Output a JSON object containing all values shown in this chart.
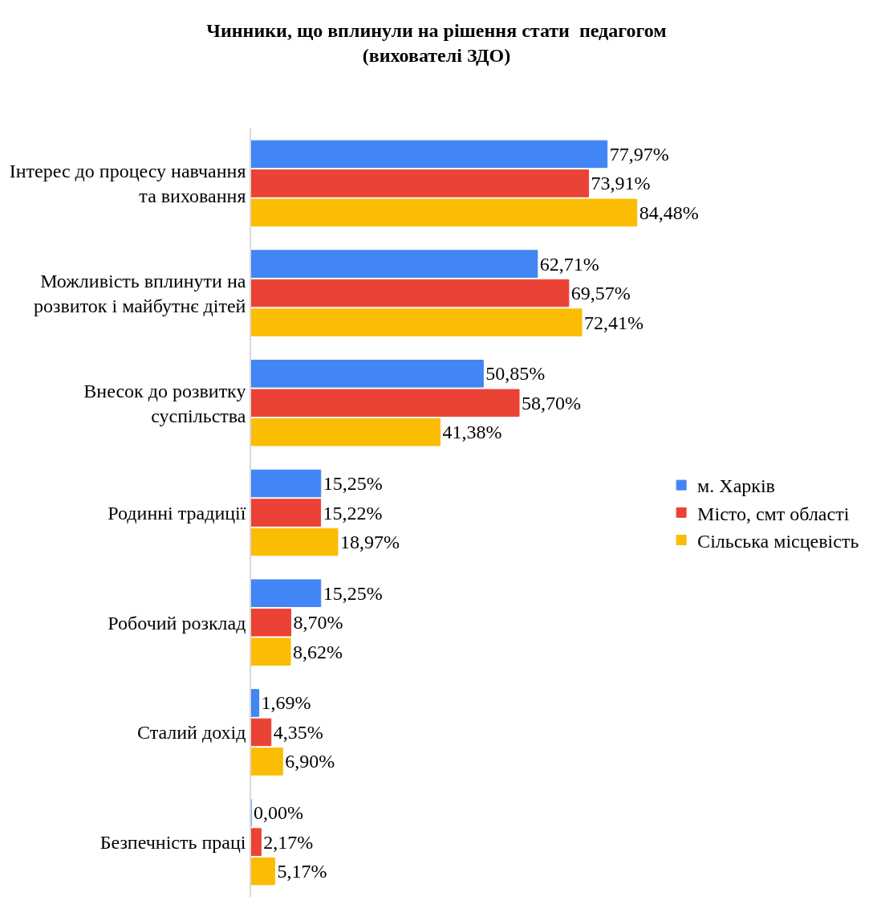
{
  "chart_data": {
    "type": "bar",
    "orientation": "horizontal",
    "title": "Чинники, що вплинули на рішення стати  педагогом\n(вихователі ЗДО)",
    "categories": [
      "Інтерес до процесу навчання\nта виховання",
      "Можливість вплинути на\nрозвиток і майбутнє дітей",
      "Внесок до розвитку\nсуспільства",
      "Родинні традиції",
      "Робочий розклад",
      "Сталий дохід",
      "Безпечність праці"
    ],
    "series": [
      {
        "name": "м. Харків",
        "color": "#4285f4",
        "values": [
          77.97,
          62.71,
          50.85,
          15.25,
          15.25,
          1.69,
          0.0
        ],
        "value_labels": [
          "77,97%",
          "62,71%",
          "50,85%",
          "15,25%",
          "15,25%",
          "1,69%",
          "0,00%"
        ]
      },
      {
        "name": "Місто, смт області",
        "color": "#ea4335",
        "values": [
          73.91,
          69.57,
          58.7,
          15.22,
          8.7,
          4.35,
          2.17
        ],
        "value_labels": [
          "73,91%",
          "69,57%",
          "58,70%",
          "15,22%",
          "8,70%",
          "4,35%",
          "2,17%"
        ]
      },
      {
        "name": "Сільська місцевість",
        "color": "#fbbc04",
        "values": [
          84.48,
          72.41,
          41.38,
          18.97,
          8.62,
          6.9,
          5.17
        ],
        "value_labels": [
          "84,48%",
          "72,41%",
          "41,38%",
          "18,97%",
          "8,62%",
          "6,90%",
          "5,17%"
        ]
      }
    ],
    "legend": "right"
  }
}
